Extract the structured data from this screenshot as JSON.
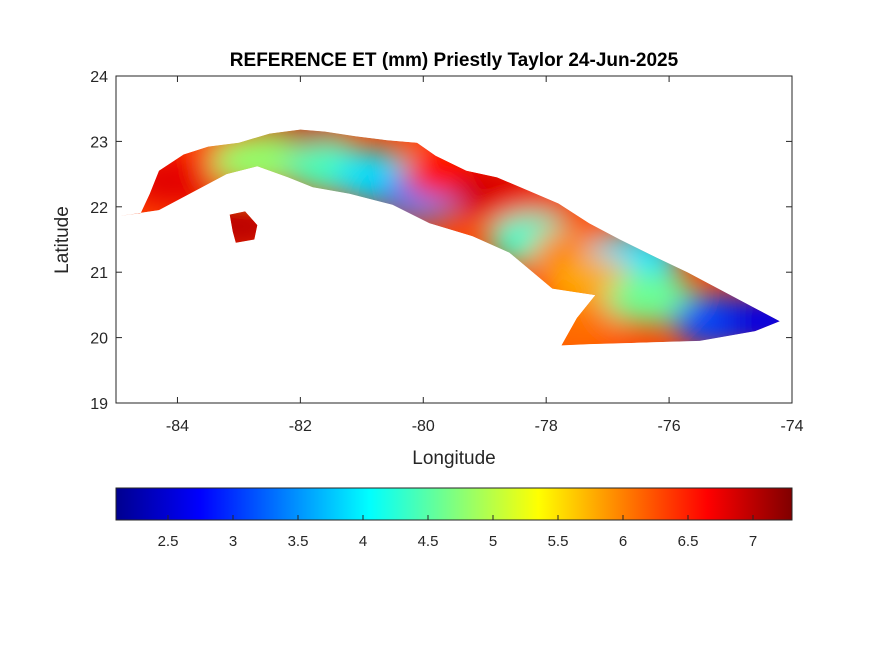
{
  "chart_data": {
    "type": "heatmap",
    "title": "REFERENCE ET (mm) Priestly Taylor 24-Jun-2025",
    "xlabel": "Longitude",
    "ylabel": "Latitude",
    "xlim": [
      -85,
      -74
    ],
    "ylim": [
      19,
      24
    ],
    "xticks": [
      -84,
      -82,
      -80,
      -78,
      -76,
      -74
    ],
    "yticks": [
      19,
      20,
      21,
      22,
      23,
      24
    ],
    "colormap": "jet",
    "colorbar": {
      "location": "below",
      "range": [
        2.1,
        7.3
      ],
      "ticks": [
        2.5,
        3,
        3.5,
        4,
        4.5,
        5,
        5.5,
        6,
        6.5,
        7
      ]
    },
    "island_outline": [
      [
        -84.95,
        21.86
      ],
      [
        -84.6,
        21.9
      ],
      [
        -84.45,
        22.2
      ],
      [
        -84.3,
        22.55
      ],
      [
        -83.9,
        22.8
      ],
      [
        -83.5,
        22.92
      ],
      [
        -83.0,
        22.98
      ],
      [
        -82.5,
        23.12
      ],
      [
        -82.0,
        23.18
      ],
      [
        -81.6,
        23.15
      ],
      [
        -81.1,
        23.08
      ],
      [
        -80.6,
        23.02
      ],
      [
        -80.1,
        22.98
      ],
      [
        -79.8,
        22.78
      ],
      [
        -79.3,
        22.55
      ],
      [
        -78.8,
        22.45
      ],
      [
        -78.3,
        22.25
      ],
      [
        -77.8,
        22.05
      ],
      [
        -77.3,
        21.75
      ],
      [
        -76.8,
        21.5
      ],
      [
        -76.2,
        21.22
      ],
      [
        -75.7,
        21.0
      ],
      [
        -75.2,
        20.75
      ],
      [
        -74.6,
        20.45
      ],
      [
        -74.2,
        20.25
      ],
      [
        -74.6,
        20.1
      ],
      [
        -75.5,
        19.95
      ],
      [
        -76.5,
        19.92
      ],
      [
        -77.3,
        19.9
      ],
      [
        -77.75,
        19.88
      ],
      [
        -77.5,
        20.3
      ],
      [
        -77.2,
        20.65
      ],
      [
        -77.9,
        20.75
      ],
      [
        -78.6,
        21.3
      ],
      [
        -79.2,
        21.55
      ],
      [
        -79.9,
        21.75
      ],
      [
        -80.5,
        22.03
      ],
      [
        -81.2,
        22.2
      ],
      [
        -81.8,
        22.3
      ],
      [
        -82.2,
        22.45
      ],
      [
        -82.7,
        22.62
      ],
      [
        -83.2,
        22.5
      ],
      [
        -83.8,
        22.2
      ],
      [
        -84.3,
        21.95
      ]
    ],
    "isle_outline": [
      [
        -83.15,
        21.88
      ],
      [
        -82.9,
        21.93
      ],
      [
        -82.7,
        21.72
      ],
      [
        -82.75,
        21.5
      ],
      [
        -83.05,
        21.45
      ],
      [
        -83.1,
        21.62
      ]
    ],
    "value_regions": [
      {
        "center": [
          -84.1,
          22.4
        ],
        "value": 6.8
      },
      {
        "center": [
          -83.1,
          22.75
        ],
        "value": 6.5
      },
      {
        "center": [
          -82.0,
          23.05
        ],
        "value": 7.0
      },
      {
        "center": [
          -82.7,
          22.7
        ],
        "value": 4.8
      },
      {
        "center": [
          -81.5,
          22.6
        ],
        "value": 4.4
      },
      {
        "center": [
          -80.7,
          22.45
        ],
        "value": 3.9
      },
      {
        "center": [
          -80.0,
          22.2
        ],
        "value": 3.4
      },
      {
        "center": [
          -79.6,
          22.5
        ],
        "value": 6.6
      },
      {
        "center": [
          -78.8,
          22.2
        ],
        "value": 6.9
      },
      {
        "center": [
          -78.3,
          21.9
        ],
        "value": 6.7
      },
      {
        "center": [
          -78.2,
          21.5
        ],
        "value": 4.3
      },
      {
        "center": [
          -77.5,
          21.3
        ],
        "value": 6.0
      },
      {
        "center": [
          -76.6,
          21.2
        ],
        "value": 3.9
      },
      {
        "center": [
          -77.3,
          20.85
        ],
        "value": 5.8
      },
      {
        "center": [
          -76.3,
          20.6
        ],
        "value": 4.6
      },
      {
        "center": [
          -75.2,
          20.25
        ],
        "value": 3.1
      },
      {
        "center": [
          -74.4,
          20.25
        ],
        "value": 2.6
      },
      {
        "center": [
          -77.5,
          20.1
        ],
        "value": 6.1
      },
      {
        "center": [
          -83.0,
          21.7
        ],
        "value": 7.0
      }
    ]
  }
}
